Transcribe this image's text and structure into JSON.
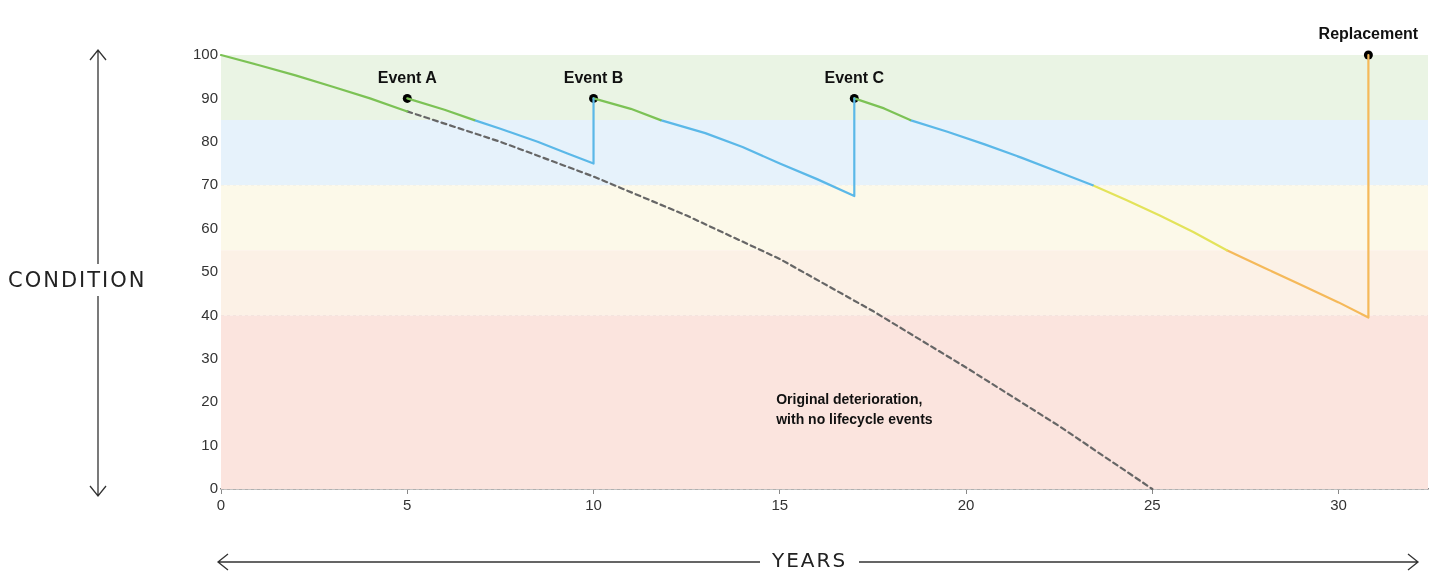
{
  "chart_data": {
    "type": "line",
    "xlabel": "YEARS",
    "ylabel": "CONDITION",
    "xlim": [
      0,
      32.4
    ],
    "xticks": [
      0,
      5,
      10,
      15,
      20,
      25,
      30
    ],
    "ylim": [
      0,
      100
    ],
    "yticks": [
      0,
      10,
      20,
      30,
      40,
      50,
      60,
      70,
      80,
      90,
      100
    ],
    "grid": true,
    "legend": false,
    "bands": [
      {
        "axis": "y",
        "from": 85,
        "to": 100,
        "color": "#eaf4e4"
      },
      {
        "axis": "y",
        "from": 70,
        "to": 85,
        "color": "#e6f2fb"
      },
      {
        "axis": "y",
        "from": 55,
        "to": 70,
        "color": "#fcf9e9"
      },
      {
        "axis": "y",
        "from": 40,
        "to": 55,
        "color": "#fcf1e6"
      },
      {
        "axis": "y",
        "from": 0,
        "to": 40,
        "color": "#fbe4de"
      }
    ],
    "series": [
      {
        "type": "line",
        "color": "#7cc255",
        "x": [
          0,
          1,
          2,
          3,
          4,
          5
        ],
        "values": [
          100,
          97.7,
          95.3,
          92.7,
          90,
          87
        ]
      },
      {
        "type": "line",
        "color": "#7cc255",
        "x": [
          5,
          6,
          6.8
        ],
        "values": [
          90,
          87.4,
          85
        ]
      },
      {
        "type": "line",
        "color": "#5bb8e8",
        "x": [
          6.8,
          7.5,
          8.5,
          9.3,
          10,
          10
        ],
        "values": [
          85,
          83,
          80,
          77.3,
          75,
          90
        ]
      },
      {
        "type": "line",
        "color": "#7cc255",
        "x": [
          10,
          11,
          11.8
        ],
        "values": [
          90,
          87.6,
          85
        ]
      },
      {
        "type": "line",
        "color": "#5bb8e8",
        "x": [
          11.8,
          13,
          14,
          15,
          16,
          17,
          17
        ],
        "values": [
          85,
          82,
          78.8,
          75,
          71.4,
          67.5,
          90
        ]
      },
      {
        "type": "line",
        "color": "#7cc255",
        "x": [
          17,
          17.8,
          18.5
        ],
        "values": [
          90,
          87.7,
          85
        ]
      },
      {
        "type": "line",
        "color": "#5bb8e8",
        "x": [
          18.5,
          19.5,
          20.5,
          21.5,
          22.5,
          23.4
        ],
        "values": [
          85,
          82.3,
          79.4,
          76.3,
          73,
          70
        ]
      },
      {
        "type": "line",
        "color": "#e3e35a",
        "x": [
          23.4,
          24.3,
          25.2,
          26.1,
          27
        ],
        "values": [
          70,
          66.6,
          63,
          59.2,
          55
        ]
      },
      {
        "type": "line",
        "color": "#f5b95a",
        "x": [
          27,
          28,
          29,
          30,
          30.8,
          30.8
        ],
        "values": [
          55,
          51,
          47,
          43,
          39.5,
          100
        ]
      },
      {
        "type": "line",
        "color": "#666666",
        "line_style": "dashed",
        "x": [
          5,
          7.5,
          10,
          12.5,
          15,
          17.5,
          20,
          22.5,
          25
        ],
        "values": [
          87,
          80,
          72,
          63,
          53,
          41,
          28,
          14.5,
          0
        ]
      },
      {
        "type": "scatter",
        "color": "#000000",
        "marker": "circle",
        "x": [
          5,
          10,
          17,
          30.8
        ],
        "values": [
          90,
          90,
          90,
          100
        ]
      }
    ],
    "annotations": [
      {
        "text": "Event A",
        "x": 5,
        "y": 90
      },
      {
        "text": "Event B",
        "x": 10,
        "y": 90
      },
      {
        "text": "Event C",
        "x": 17,
        "y": 90
      },
      {
        "text": "Replacement",
        "x": 30.8,
        "y": 100
      },
      "Original deterioration,\nwith no lifecycle events"
    ]
  }
}
